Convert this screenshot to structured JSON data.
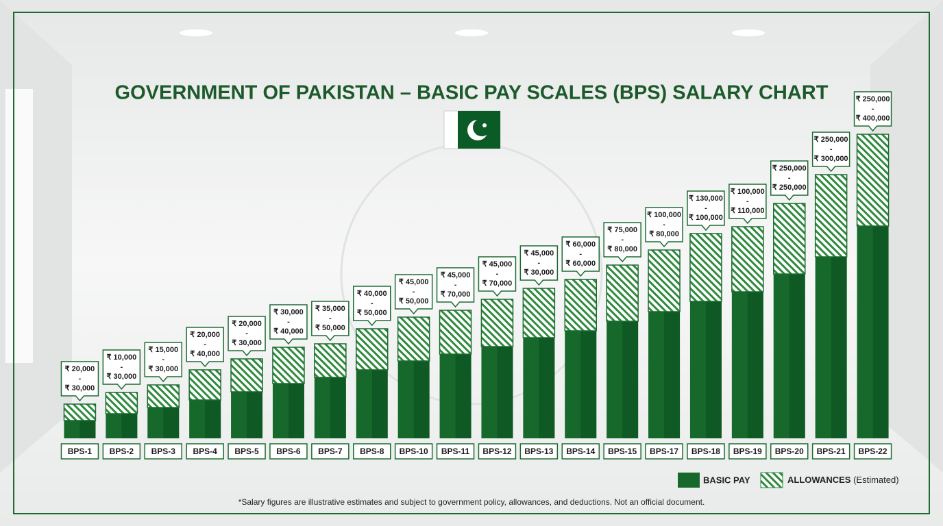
{
  "chart_data": {
    "type": "stacked_bar",
    "title": "GOVERNMENT OF PAKISTAN – BASIC PAY SCALES (BPS) SALARY CHART",
    "categories": [
      "BPS-1",
      "BPS-2",
      "BPS-3",
      "BPS-4",
      "BPS-5",
      "BPS-6",
      "BPS-7",
      "BPS-8",
      "BPS-10",
      "BPS-11",
      "BPS-12",
      "BPS-13",
      "BPS-14",
      "BPS-15",
      "BPS-17",
      "BPS-18",
      "BPS-19",
      "BPS-20",
      "BPS-21",
      "BPS-22"
    ],
    "series": [
      {
        "name": "BASIC PAY",
        "color": "#16692b",
        "values": [
          26,
          36,
          45,
          56,
          68,
          80,
          89,
          100,
          113,
          123,
          134,
          147,
          157,
          171,
          185,
          200,
          214,
          240,
          265,
          310
        ]
      },
      {
        "name": "ALLOWANCES",
        "color": "#2e8a3c",
        "values": [
          24,
          31,
          33,
          44,
          48,
          53,
          49,
          60,
          64,
          64,
          69,
          72,
          75,
          82,
          90,
          99,
          95,
          103,
          120,
          134
        ]
      }
    ],
    "legend_note": "(Estimated)",
    "range_labels": [
      [
        "₹ 20,000",
        "-",
        "₹ 30,000"
      ],
      [
        "₹ 10,000",
        "-",
        "₹ 30,000"
      ],
      [
        "₹ 15,000",
        "-",
        "₹ 30,000"
      ],
      [
        "₹ 20,000",
        "-",
        "₹ 40,000"
      ],
      [
        "₹ 20,000",
        "-",
        "₹ 30,000"
      ],
      [
        "₹ 30,000",
        "-",
        "₹ 40,000"
      ],
      [
        "₹ 35,000",
        "-",
        "₹ 50,000"
      ],
      [
        "₹ 40,000",
        "-",
        "₹ 50,000"
      ],
      [
        "₹ 45,000",
        "-",
        "₹ 50,000"
      ],
      [
        "₹ 45,000",
        "-",
        "₹ 70,000"
      ],
      [
        "₹ 45,000",
        "-",
        "₹ 70,000"
      ],
      [
        "₹ 45,000",
        "-",
        "₹ 30,000"
      ],
      [
        "₹ 60,000",
        "-",
        "₹ 60,000"
      ],
      [
        "₹ 75,000",
        "-",
        "₹ 80,000"
      ],
      [
        "₹ 100,000",
        "-",
        "₹ 80,000"
      ],
      [
        "₹ 130,000",
        "-",
        "₹ 100,000"
      ],
      [
        "₹ 100,000",
        "-",
        "₹ 110,000"
      ],
      [
        "₹ 250,000",
        "-",
        "₹ 250,000"
      ],
      [
        "₹ 250,000",
        "-",
        "₹ 300,000"
      ],
      [
        "₹ 250,000",
        "-",
        "₹ 400,000"
      ]
    ],
    "ylim": [
      0,
      450
    ],
    "footnote": "*Salary figures are illustrative estimates and subject to government policy, allowances, and deductions. Not an official document."
  }
}
